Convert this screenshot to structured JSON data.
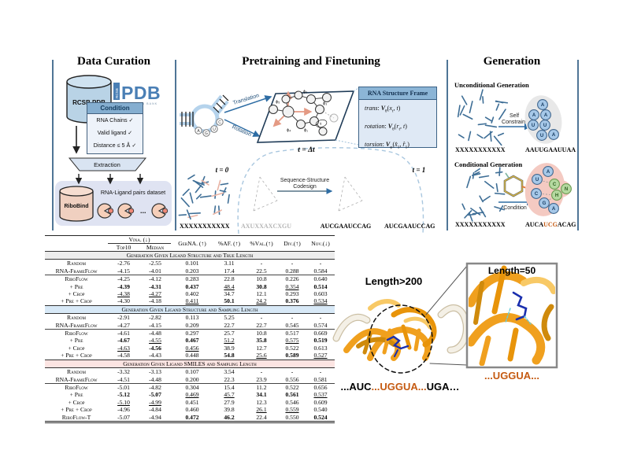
{
  "panels": {
    "data_curation": {
      "title": "Data Curation",
      "db_label": "RCSB PDB",
      "pdb_logo": {
        "rcsb": "RCSB",
        "pdb": "PDB",
        "tagline": "PROTEIN DATA BANK"
      },
      "condition": {
        "header": "Condition",
        "items": [
          "RNA Chains ✓",
          "Valid ligand ✓",
          "Distance ≤ 5 Å ✓"
        ]
      },
      "extraction_label": "Extraction",
      "dataset": {
        "db_label": "RiboBind",
        "caption": "RNA-Ligand pairs dataset",
        "ellipsis": "..."
      }
    },
    "pretraining": {
      "title": "Pretraining and Finetuning",
      "translation_label": "Translation",
      "rotation_label": "Rotation",
      "nucleotides": [
        "A",
        "G",
        "U",
        "C"
      ],
      "phi_labels": [
        "ϕ₅",
        "ϕ₂",
        "ϕ₃",
        "ϕ₄",
        "ϕ₁"
      ],
      "tau_label": "τ",
      "frame_box": {
        "header": "RNA Structure Frame",
        "trans_html": "<i>trans</i>: <b><i>V</i></b><sub>θ</sub>(<i>x</i><sub>t</sub>, <i>t</i>)",
        "rotation_html": "<i>rotation</i>: <b><i>V</i></b><sub>θ</sub>(<i>r</i><sub>t</sub>, <i>t</i>)",
        "torsion_html": "<i>torsion</i>: <b><i>V</i></b><sub>φ</sub>(<i>x̂</i><sub>1</sub>, <i>r̂</i><sub>1</sub>)"
      },
      "t0_label": "t = 0",
      "tdt_label": "t = Δt",
      "t1_label": "t = 1",
      "codesign_label_1": "Sequence-Structure",
      "codesign_label_2": "Codesign",
      "seq_t0": "XXXXXXXXXXX",
      "seq_noisy": "AXUXXAXCXGU",
      "seq_codesign": "AUCGAAUCCAG",
      "seq_t1": "AUCGAAUCCAG"
    },
    "generation": {
      "title": "Generation",
      "unconditional": {
        "heading": "Unconditional Generation",
        "input_seq": "XXXXXXXXXXX",
        "arrow_label_1": "Self",
        "arrow_label_2": "Constraint",
        "beads": [
          "A",
          "A",
          "A",
          "U",
          "U",
          "U",
          "A"
        ],
        "output_seq": "AAUUGAAUUAA"
      },
      "conditional": {
        "heading": "Conditional Generation",
        "input_seq": "XXXXXXXXXXX",
        "arrow_label": "Condition",
        "rna_beads": [
          "A",
          "U",
          "C",
          "G",
          "A"
        ],
        "ligand_beads": [
          "C",
          "N",
          "H"
        ],
        "output_seq_html": "AUCA<span class=\"org\">UCG</span>ACAG"
      }
    }
  },
  "table": {
    "header": {
      "vina": "Vina. (↓)",
      "top10": "Top10",
      "median": "Median",
      "cols": [
        "GerNA. (↑)",
        "%AF. (↑)",
        "%Val.(↑)",
        "Div.(↑)",
        "Nov.(↓)"
      ]
    },
    "sections": [
      {
        "title": "Generation Given Ligand Structure and True Length",
        "bg": "#ececec",
        "groups": [
          [
            {
              "method": "Random",
              "cells": [
                [
                  "-2.76",
                  ""
                ],
                [
                  "-2.55",
                  ""
                ],
                [
                  "0.101",
                  ""
                ],
                [
                  "3.11",
                  ""
                ],
                [
                  "-",
                  ""
                ],
                [
                  "-",
                  ""
                ],
                [
                  "-",
                  ""
                ]
              ]
            },
            {
              "method": "RNA-FrameFlow",
              "cells": [
                [
                  "-4.15",
                  ""
                ],
                [
                  "-4.01",
                  ""
                ],
                [
                  "0.203",
                  ""
                ],
                [
                  "17.4",
                  ""
                ],
                [
                  "22.5",
                  ""
                ],
                [
                  "0.288",
                  ""
                ],
                [
                  "0.584",
                  ""
                ]
              ]
            }
          ],
          [
            {
              "method": "RiboFlow",
              "cells": [
                [
                  "-4.25",
                  ""
                ],
                [
                  "-4.12",
                  ""
                ],
                [
                  "0.283",
                  ""
                ],
                [
                  "22.8",
                  ""
                ],
                [
                  "10.8",
                  ""
                ],
                [
                  "0.226",
                  ""
                ],
                [
                  "0.640",
                  ""
                ]
              ]
            },
            {
              "method": "+ Pre",
              "cells": [
                [
                  "-4.39",
                  "b"
                ],
                [
                  "-4.31",
                  "b"
                ],
                [
                  "0.437",
                  "b"
                ],
                [
                  "48.4",
                  "u"
                ],
                [
                  "30.8",
                  "b"
                ],
                [
                  "0.354",
                  "u"
                ],
                [
                  "0.514",
                  "b"
                ]
              ]
            },
            {
              "method": "+ Crop",
              "cells": [
                [
                  "-4.38",
                  "u"
                ],
                [
                  "-4.27",
                  "u"
                ],
                [
                  "0.402",
                  ""
                ],
                [
                  "34.7",
                  ""
                ],
                [
                  "12.1",
                  ""
                ],
                [
                  "0.293",
                  ""
                ],
                [
                  "0.603",
                  ""
                ]
              ]
            },
            {
              "method": "+ Pre + Crop",
              "cells": [
                [
                  "-4.30",
                  ""
                ],
                [
                  "-4.18",
                  ""
                ],
                [
                  "0.411",
                  "u"
                ],
                [
                  "50.1",
                  "b"
                ],
                [
                  "24.2",
                  "u"
                ],
                [
                  "0.376",
                  "b"
                ],
                [
                  "0.534",
                  "u"
                ]
              ]
            }
          ]
        ]
      },
      {
        "title": "Generation Given Ligand Structure and Sampling Length",
        "bg": "#d8e9f7",
        "groups": [
          [
            {
              "method": "Random",
              "cells": [
                [
                  "-2.91",
                  ""
                ],
                [
                  "-2.82",
                  ""
                ],
                [
                  "0.113",
                  ""
                ],
                [
                  "5.25",
                  ""
                ],
                [
                  "-",
                  ""
                ],
                [
                  "-",
                  ""
                ],
                [
                  "-",
                  ""
                ]
              ]
            },
            {
              "method": "RNA-FrameFlow",
              "cells": [
                [
                  "-4.27",
                  ""
                ],
                [
                  "-4.15",
                  ""
                ],
                [
                  "0.209",
                  ""
                ],
                [
                  "22.7",
                  ""
                ],
                [
                  "22.7",
                  ""
                ],
                [
                  "0.545",
                  ""
                ],
                [
                  "0.574",
                  ""
                ]
              ]
            }
          ],
          [
            {
              "method": "RiboFlow",
              "cells": [
                [
                  "-4.61",
                  ""
                ],
                [
                  "-4.48",
                  ""
                ],
                [
                  "0.297",
                  ""
                ],
                [
                  "25.7",
                  ""
                ],
                [
                  "10.8",
                  ""
                ],
                [
                  "0.517",
                  ""
                ],
                [
                  "0.669",
                  ""
                ]
              ]
            },
            {
              "method": "+ Pre",
              "cells": [
                [
                  "-4.67",
                  "b"
                ],
                [
                  "-4.55",
                  "u"
                ],
                [
                  "0.467",
                  "b"
                ],
                [
                  "51.2",
                  "u"
                ],
                [
                  "35.8",
                  "b"
                ],
                [
                  "0.575",
                  "u"
                ],
                [
                  "0.519",
                  "b"
                ]
              ]
            },
            {
              "method": "+ Crop",
              "cells": [
                [
                  "-4.63",
                  "u"
                ],
                [
                  "-4.56",
                  "b"
                ],
                [
                  "0.456",
                  "u"
                ],
                [
                  "38.9",
                  ""
                ],
                [
                  "12.7",
                  ""
                ],
                [
                  "0.522",
                  ""
                ],
                [
                  "0.613",
                  ""
                ]
              ]
            },
            {
              "method": "+ Pre + Crop",
              "cells": [
                [
                  "-4.58",
                  ""
                ],
                [
                  "-4.43",
                  ""
                ],
                [
                  "0.448",
                  ""
                ],
                [
                  "54.8",
                  "b"
                ],
                [
                  "25.6",
                  "u"
                ],
                [
                  "0.589",
                  "b"
                ],
                [
                  "0.527",
                  "u"
                ]
              ]
            }
          ]
        ]
      },
      {
        "title": "Generation Given Ligand SMILES and Sampling Length",
        "bg": "#fce4e2",
        "groups": [
          [
            {
              "method": "Random",
              "cells": [
                [
                  "-3.32",
                  ""
                ],
                [
                  "-3.13",
                  ""
                ],
                [
                  "0.107",
                  ""
                ],
                [
                  "3.54",
                  ""
                ],
                [
                  "-",
                  ""
                ],
                [
                  "-",
                  ""
                ],
                [
                  "-",
                  ""
                ]
              ]
            },
            {
              "method": "RNA-FrameFlow",
              "cells": [
                [
                  "-4.51",
                  ""
                ],
                [
                  "-4.48",
                  ""
                ],
                [
                  "0.200",
                  ""
                ],
                [
                  "22.3",
                  ""
                ],
                [
                  "23.9",
                  ""
                ],
                [
                  "0.556",
                  ""
                ],
                [
                  "0.581",
                  ""
                ]
              ]
            }
          ],
          [
            {
              "method": "RiboFlow",
              "cells": [
                [
                  "-5.01",
                  ""
                ],
                [
                  "-4.82",
                  ""
                ],
                [
                  "0.304",
                  ""
                ],
                [
                  "15.4",
                  ""
                ],
                [
                  "11.2",
                  ""
                ],
                [
                  "0.522",
                  ""
                ],
                [
                  "0.656",
                  ""
                ]
              ]
            },
            {
              "method": "+ Pre",
              "cells": [
                [
                  "-5.12",
                  "b"
                ],
                [
                  "-5.07",
                  "b"
                ],
                [
                  "0.469",
                  "u"
                ],
                [
                  "45.7",
                  "u"
                ],
                [
                  "34.1",
                  "b"
                ],
                [
                  "0.561",
                  "b"
                ],
                [
                  "0.537",
                  "u"
                ]
              ]
            },
            {
              "method": "+ Crop",
              "cells": [
                [
                  "-5.10",
                  "u"
                ],
                [
                  "-4.99",
                  "u"
                ],
                [
                  "0.451",
                  ""
                ],
                [
                  "27.9",
                  ""
                ],
                [
                  "12.3",
                  ""
                ],
                [
                  "0.546",
                  ""
                ],
                [
                  "0.609",
                  ""
                ]
              ]
            },
            {
              "method": "+ Pre + Crop",
              "cells": [
                [
                  "-4.96",
                  ""
                ],
                [
                  "-4.84",
                  ""
                ],
                [
                  "0.460",
                  ""
                ],
                [
                  "39.8",
                  ""
                ],
                [
                  "26.1",
                  "u"
                ],
                [
                  "0.559",
                  "u"
                ],
                [
                  "0.540",
                  ""
                ]
              ]
            },
            {
              "method": "RiboFlow-T",
              "cells": [
                [
                  "-5.07",
                  ""
                ],
                [
                  "-4.94",
                  ""
                ],
                [
                  "0.472",
                  "b"
                ],
                [
                  "46.2",
                  "b"
                ],
                [
                  "22.4",
                  ""
                ],
                [
                  "0.550",
                  ""
                ],
                [
                  "0.524",
                  "b"
                ]
              ]
            }
          ]
        ]
      }
    ]
  },
  "figure": {
    "length_large": "Length>200",
    "length_small": "Length=50",
    "seq_zoom": "...UGGUA...",
    "seq_main_html": "...AUC<span class=\"org\">...UGGUA...</span>UGA…"
  },
  "colors": {
    "seq_highlight": "#c55a11",
    "steel_blue": "#3e6e96",
    "rna_orange": "#f0a01e"
  }
}
